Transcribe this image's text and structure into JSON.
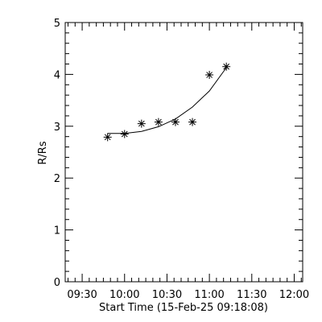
{
  "chart_data": {
    "type": "scatter",
    "title": "",
    "xlabel": "Start Time (15-Feb-25 09:18:08)",
    "ylabel": "R/Rs",
    "xlim": [
      "09:18",
      "12:06"
    ],
    "ylim": [
      0,
      5
    ],
    "x_ticks": [
      "09:30",
      "10:00",
      "10:30",
      "11:00",
      "11:30",
      "12:00"
    ],
    "y_ticks": [
      "0",
      "1",
      "2",
      "3",
      "4",
      "5"
    ],
    "grid": false,
    "series": [
      {
        "marker": "asterisk",
        "points": [
          {
            "x": "09:48",
            "y": 2.79
          },
          {
            "x": "10:00",
            "y": 2.85
          },
          {
            "x": "10:12",
            "y": 3.05
          },
          {
            "x": "10:24",
            "y": 3.08
          },
          {
            "x": "10:36",
            "y": 3.08
          },
          {
            "x": "10:48",
            "y": 3.08
          },
          {
            "x": "11:00",
            "y": 3.99
          },
          {
            "x": "11:12",
            "y": 4.15
          }
        ]
      }
    ],
    "fit": {
      "type": "curve",
      "points": [
        {
          "x": "09:48",
          "y": 2.86
        },
        {
          "x": "10:00",
          "y": 2.86
        },
        {
          "x": "10:12",
          "y": 2.9
        },
        {
          "x": "10:24",
          "y": 2.99
        },
        {
          "x": "10:36",
          "y": 3.14
        },
        {
          "x": "10:48",
          "y": 3.37
        },
        {
          "x": "11:00",
          "y": 3.68
        },
        {
          "x": "11:12",
          "y": 4.13
        }
      ]
    }
  }
}
